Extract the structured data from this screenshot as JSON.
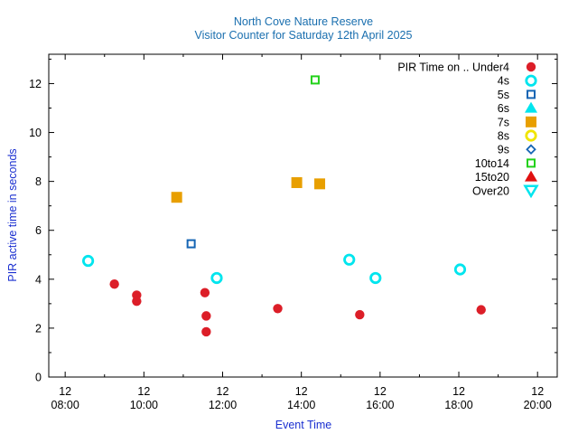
{
  "chart_data": {
    "type": "scatter",
    "title": "North Cove Nature Reserve",
    "subtitle": "Visitor Counter for Saturday 12th April 2025",
    "xlabel": "Event Time",
    "ylabel": "PIR active time in seconds",
    "legend_title": "PIR Time on ..",
    "legend_position": "top-right",
    "grid": false,
    "xlim": [
      "07:35",
      "20:30"
    ],
    "ylim": [
      0,
      13.2
    ],
    "yticks": [
      0,
      2,
      4,
      6,
      8,
      10,
      12
    ],
    "xticks": [
      {
        "time": "08:00",
        "line1": "12",
        "line2": "08:00"
      },
      {
        "time": "10:00",
        "line1": "12",
        "line2": "10:00"
      },
      {
        "time": "12:00",
        "line1": "12",
        "line2": "12:00"
      },
      {
        "time": "14:00",
        "line1": "12",
        "line2": "14:00"
      },
      {
        "time": "16:00",
        "line1": "12",
        "line2": "16:00"
      },
      {
        "time": "18:00",
        "line1": "12",
        "line2": "18:00"
      },
      {
        "time": "20:00",
        "line1": "12",
        "line2": "20:00"
      }
    ],
    "series": [
      {
        "name": "Under4",
        "marker": "circle-filled",
        "color": "#dc1e28",
        "points": [
          {
            "x": "09:15",
            "y": 3.8
          },
          {
            "x": "09:49",
            "y": 3.35
          },
          {
            "x": "09:49",
            "y": 3.1
          },
          {
            "x": "11:33",
            "y": 3.45
          },
          {
            "x": "11:35",
            "y": 2.5
          },
          {
            "x": "11:35",
            "y": 1.85
          },
          {
            "x": "13:24",
            "y": 2.8
          },
          {
            "x": "15:29",
            "y": 2.55
          },
          {
            "x": "18:34",
            "y": 2.75
          }
        ]
      },
      {
        "name": "4s",
        "marker": "circle-open",
        "color": "#00e5ee",
        "points": [
          {
            "x": "08:35",
            "y": 4.75
          },
          {
            "x": "11:51",
            "y": 4.05
          },
          {
            "x": "15:13",
            "y": 4.8
          },
          {
            "x": "15:53",
            "y": 4.05
          },
          {
            "x": "18:02",
            "y": 4.4
          }
        ]
      },
      {
        "name": "5s",
        "marker": "square-open",
        "color": "#1565b4",
        "points": [
          {
            "x": "11:12",
            "y": 5.45
          }
        ]
      },
      {
        "name": "6s",
        "marker": "triangle-up-filled",
        "color": "#00e5ee",
        "points": []
      },
      {
        "name": "7s",
        "marker": "square-filled",
        "color": "#e89f00",
        "points": [
          {
            "x": "10:50",
            "y": 7.35
          },
          {
            "x": "13:53",
            "y": 7.95
          },
          {
            "x": "14:28",
            "y": 7.9
          }
        ]
      },
      {
        "name": "8s",
        "marker": "circle-open",
        "color": "#f0e500",
        "points": []
      },
      {
        "name": "9s",
        "marker": "diamond-open",
        "color": "#1565b4",
        "points": []
      },
      {
        "name": "10to14",
        "marker": "square-open",
        "color": "#22d11a",
        "points": [
          {
            "x": "14:21",
            "y": 12.15
          }
        ]
      },
      {
        "name": "15to20",
        "marker": "triangle-up-filled",
        "color": "#e01010",
        "points": []
      },
      {
        "name": "Over20",
        "marker": "triangle-down-open",
        "color": "#00e5ee",
        "points": []
      }
    ]
  }
}
